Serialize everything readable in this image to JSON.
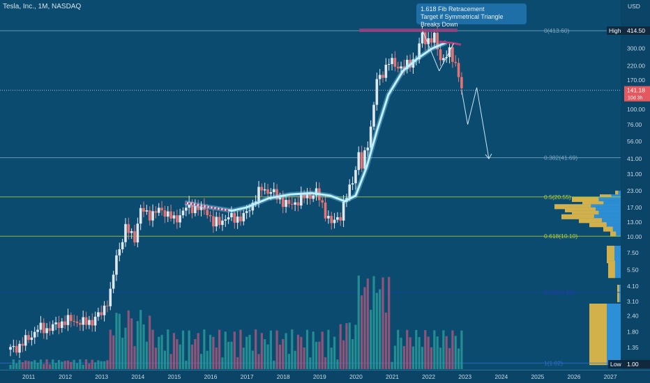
{
  "header": {
    "symbol_line": "Tesla, Inc., 1M, NASDAQ"
  },
  "callout": {
    "line1": "1.618 Fib Retracement",
    "line2": "Target if Symmetrical Triangle Breaks Down"
  },
  "price_axis": {
    "currency": "USD",
    "high_label": "High",
    "high_value": "414.50",
    "low_label": "Low",
    "low_value": "1.00",
    "current_price": "141.18",
    "countdown": "10d 3h",
    "ticks": [
      "300.00",
      "220.00",
      "170.00",
      "130.00",
      "100.00",
      "76.00",
      "56.00",
      "41.00",
      "31.00",
      "23.00",
      "17.00",
      "13.00",
      "10.00",
      "7.50",
      "5.50",
      "4.10",
      "3.10",
      "2.40",
      "1.80",
      "1.35"
    ]
  },
  "fib_levels": [
    {
      "label": "0(413.60)",
      "price": 413.6,
      "color": "#7fa8bf"
    },
    {
      "label": "0.382(41.69)",
      "price": 41.69,
      "color": "#7fa8bf"
    },
    {
      "label": "0.5(20.55)",
      "price": 20.55,
      "color": "#b5cf3a"
    },
    {
      "label": "0.618(10.10)",
      "price": 10.1,
      "color": "#b5cf3a"
    },
    {
      "label": "0.786(3.66)",
      "price": 3.66,
      "color": "#1f3fa8"
    },
    {
      "label": "1(1.02)",
      "price": 1.02,
      "color": "#2f6fd0"
    }
  ],
  "chart_data": {
    "type": "candlestick",
    "title": "Tesla, Inc., 1M, NASDAQ",
    "scale": "log",
    "y_unit": "USD",
    "ylim": [
      1.0,
      500
    ],
    "x_years": [
      "2011",
      "2012",
      "2013",
      "2014",
      "2015",
      "2016",
      "2017",
      "2018",
      "2019",
      "2020",
      "2021",
      "2022",
      "2023",
      "2024",
      "2025",
      "2026",
      "2027"
    ],
    "series": [
      {
        "type": "monthly-close",
        "points": [
          [
            "2010-07",
            1.3
          ],
          [
            "2010-10",
            1.4
          ],
          [
            "2011-01",
            1.6
          ],
          [
            "2011-04",
            1.9
          ],
          [
            "2011-07",
            1.9
          ],
          [
            "2011-10",
            2.0
          ],
          [
            "2012-01",
            2.2
          ],
          [
            "2012-04",
            2.2
          ],
          [
            "2012-07",
            2.1
          ],
          [
            "2012-10",
            2.2
          ],
          [
            "2013-01",
            2.5
          ],
          [
            "2013-04",
            3.6
          ],
          [
            "2013-06",
            7.0
          ],
          [
            "2013-09",
            11.5
          ],
          [
            "2013-12",
            10.0
          ],
          [
            "2014-02",
            16.0
          ],
          [
            "2014-06",
            15.0
          ],
          [
            "2014-09",
            16.5
          ],
          [
            "2015-01",
            13.5
          ],
          [
            "2015-06",
            17.5
          ],
          [
            "2015-12",
            16.0
          ],
          [
            "2016-02",
            12.5
          ],
          [
            "2016-06",
            14.0
          ],
          [
            "2016-12",
            14.2
          ],
          [
            "2017-03",
            18.5
          ],
          [
            "2017-06",
            24.0
          ],
          [
            "2017-09",
            22.5
          ],
          [
            "2018-03",
            17.5
          ],
          [
            "2018-07",
            20.0
          ],
          [
            "2018-12",
            22.2
          ],
          [
            "2019-05",
            12.5
          ],
          [
            "2019-08",
            15.0
          ],
          [
            "2019-12",
            28.0
          ],
          [
            "2020-02",
            44.0
          ],
          [
            "2020-03",
            34.5
          ],
          [
            "2020-06",
            72.0
          ],
          [
            "2020-08",
            165.0
          ],
          [
            "2020-12",
            235.0
          ],
          [
            "2021-02",
            225.0
          ],
          [
            "2021-05",
            210.0
          ],
          [
            "2021-09",
            258.0
          ],
          [
            "2021-11",
            380.0
          ],
          [
            "2021-12",
            352.0
          ],
          [
            "2022-03",
            360.0
          ],
          [
            "2022-05",
            250.0
          ],
          [
            "2022-08",
            275.0
          ],
          [
            "2022-10",
            227.0
          ],
          [
            "2022-11",
            194.0
          ],
          [
            "2022-12",
            141.18
          ]
        ]
      },
      {
        "type": "volume",
        "unit": "relative",
        "note": "monthly volume bars at chart bottom"
      },
      {
        "type": "projection",
        "points": [
          [
            "2022-12",
            141
          ],
          [
            "2023-02",
            76
          ],
          [
            "2023-05",
            148
          ],
          [
            "2023-09",
            41
          ]
        ]
      }
    ],
    "annotations": [
      "1.618 Fib Retracement",
      "Target if Symmetrical Triangle Breaks Down"
    ]
  }
}
